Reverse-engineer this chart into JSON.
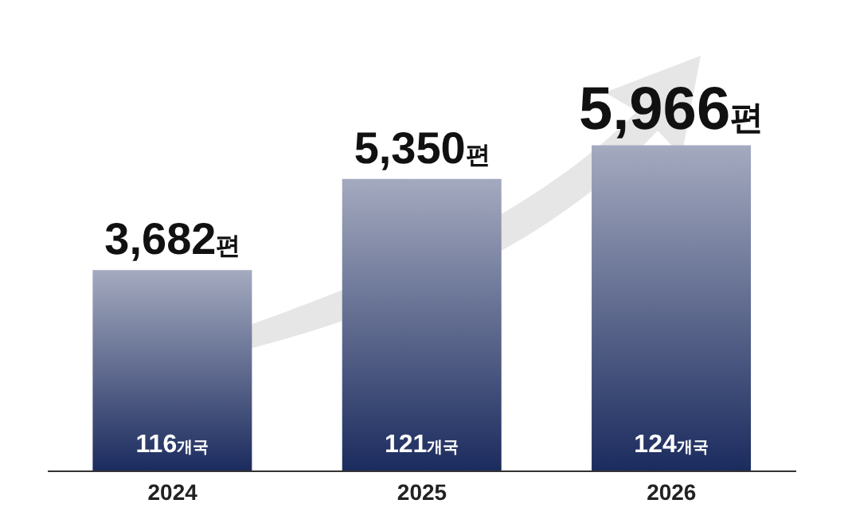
{
  "chart_data": {
    "type": "bar",
    "categories": [
      "2024",
      "2025",
      "2026"
    ],
    "values": [
      3682,
      5350,
      5966
    ],
    "value_labels": [
      "3,682편",
      "5,350편",
      "5,966편"
    ],
    "color": "#1b2b5e",
    "annotations": [
      "116개국",
      "121개국",
      "124개국"
    ]
  }
}
